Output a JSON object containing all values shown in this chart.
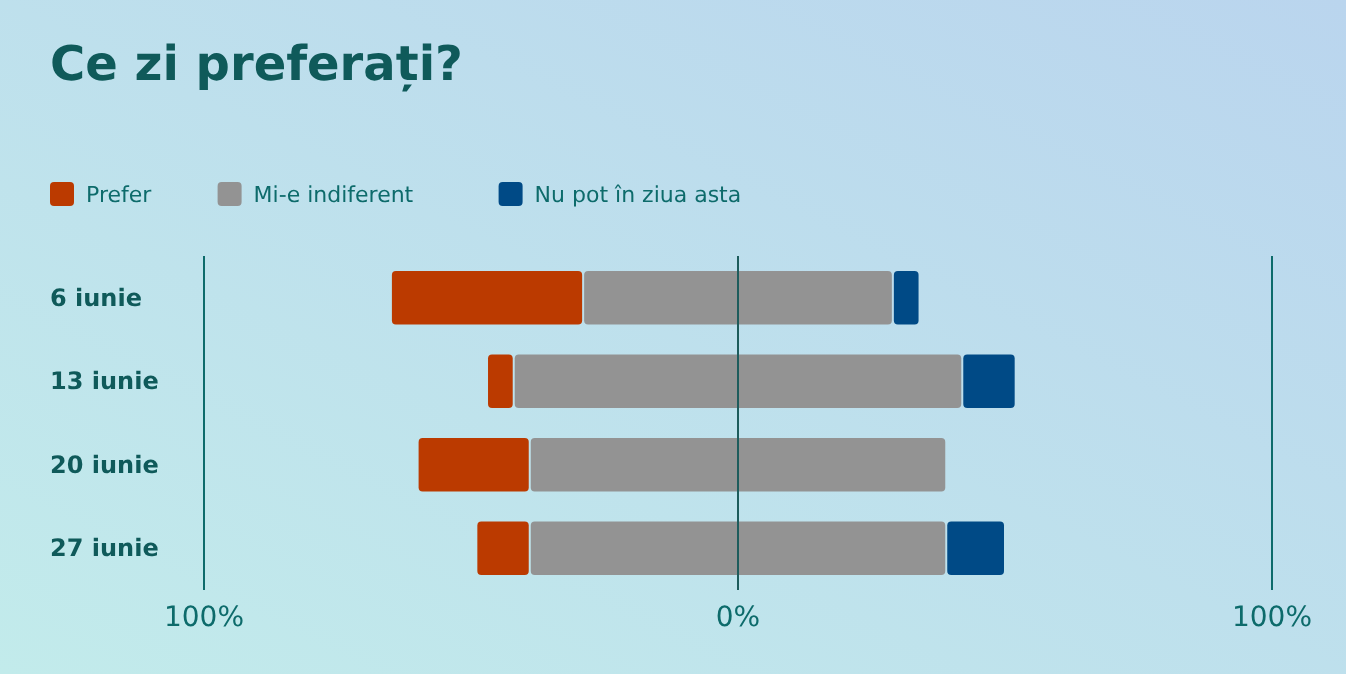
{
  "chart_data": {
    "type": "bar",
    "title": "Ce zi preferați?",
    "orientation": "horizontal",
    "categories": [
      "6 iunie",
      "13 iunie",
      "20 iunie",
      "27 iunie"
    ],
    "xlim": [
      -100,
      100
    ],
    "xticks": [
      {
        "value": -100,
        "label": "100%"
      },
      {
        "value": 0,
        "label": "0%"
      },
      {
        "value": 100,
        "label": "100%"
      }
    ],
    "legend": "top left",
    "series": [
      {
        "name": "Prefer",
        "color": "#bb3a00",
        "base": [
          -65,
          -47,
          -60,
          -49
        ],
        "values": [
          36,
          5,
          21,
          10
        ]
      },
      {
        "name": "Mi-e indiferent",
        "color": "#939393",
        "base": [
          -29,
          -42,
          -39,
          -39
        ],
        "values": [
          58,
          84,
          78,
          78
        ]
      },
      {
        "name": "Nu pot în ziua asta",
        "color": "#004a86",
        "base": [
          29,
          42,
          null,
          39
        ],
        "values": [
          5,
          10,
          null,
          11
        ]
      }
    ]
  }
}
